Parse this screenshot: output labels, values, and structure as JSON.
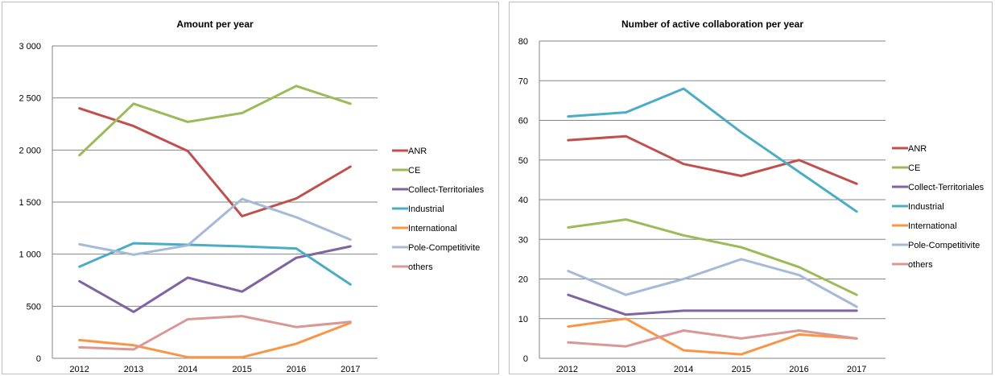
{
  "chart_data": [
    {
      "type": "line",
      "title": "Amount per year",
      "xlabel": "",
      "ylabel": "",
      "categories": [
        "2012",
        "2013",
        "2014",
        "2015",
        "2016",
        "2017"
      ],
      "ylim": [
        0,
        3000
      ],
      "yticks": [
        0,
        500,
        1000,
        1500,
        2000,
        2500,
        3000
      ],
      "ytick_labels": [
        "0",
        "500",
        "1 000",
        "1 500",
        "2 000",
        "2 500",
        "3 000"
      ],
      "grid": true,
      "legend_position": "right",
      "series": [
        {
          "name": "ANR",
          "color": "#c0504d",
          "values": [
            2400,
            2230,
            1990,
            1365,
            1535,
            1840
          ]
        },
        {
          "name": "CE",
          "color": "#9bbb59",
          "values": [
            1950,
            2445,
            2270,
            2355,
            2615,
            2445
          ]
        },
        {
          "name": "Collect-Territoriales",
          "color": "#8064a2",
          "values": [
            740,
            445,
            775,
            640,
            965,
            1075
          ]
        },
        {
          "name": "Industrial",
          "color": "#4bacc6",
          "values": [
            880,
            1105,
            1090,
            1075,
            1055,
            710
          ]
        },
        {
          "name": "International",
          "color": "#f79646",
          "values": [
            175,
            125,
            10,
            10,
            140,
            340
          ]
        },
        {
          "name": "Pole-Competitivite",
          "color": "#a5b9d9",
          "values": [
            1095,
            995,
            1085,
            1530,
            1355,
            1140
          ]
        },
        {
          "name": "others",
          "color": "#d99795",
          "values": [
            105,
            85,
            375,
            405,
            300,
            350
          ]
        }
      ]
    },
    {
      "type": "line",
      "title": "Number of active collaboration per year",
      "xlabel": "",
      "ylabel": "",
      "categories": [
        "2012",
        "2013",
        "2014",
        "2015",
        "2016",
        "2017"
      ],
      "ylim": [
        0,
        80
      ],
      "yticks": [
        0,
        10,
        20,
        30,
        40,
        50,
        60,
        70,
        80
      ],
      "ytick_labels": [
        "0",
        "10",
        "20",
        "30",
        "40",
        "50",
        "60",
        "70",
        "80"
      ],
      "grid": true,
      "legend_position": "right",
      "series": [
        {
          "name": "ANR",
          "color": "#c0504d",
          "values": [
            55,
            56,
            49,
            46,
            50,
            44
          ]
        },
        {
          "name": "CE",
          "color": "#9bbb59",
          "values": [
            33,
            35,
            31,
            28,
            23,
            16
          ]
        },
        {
          "name": "Collect-Territoriales",
          "color": "#8064a2",
          "values": [
            16,
            11,
            12,
            12,
            12,
            12
          ]
        },
        {
          "name": "Industrial",
          "color": "#4bacc6",
          "values": [
            61,
            62,
            68,
            57,
            47,
            37
          ]
        },
        {
          "name": "International",
          "color": "#f79646",
          "values": [
            8,
            10,
            2,
            1,
            6,
            5
          ]
        },
        {
          "name": "Pole-Competitivite",
          "color": "#a5b9d9",
          "values": [
            22,
            16,
            20,
            25,
            21,
            13
          ]
        },
        {
          "name": "others",
          "color": "#d99795",
          "values": [
            4,
            3,
            7,
            5,
            7,
            5
          ]
        }
      ]
    }
  ]
}
